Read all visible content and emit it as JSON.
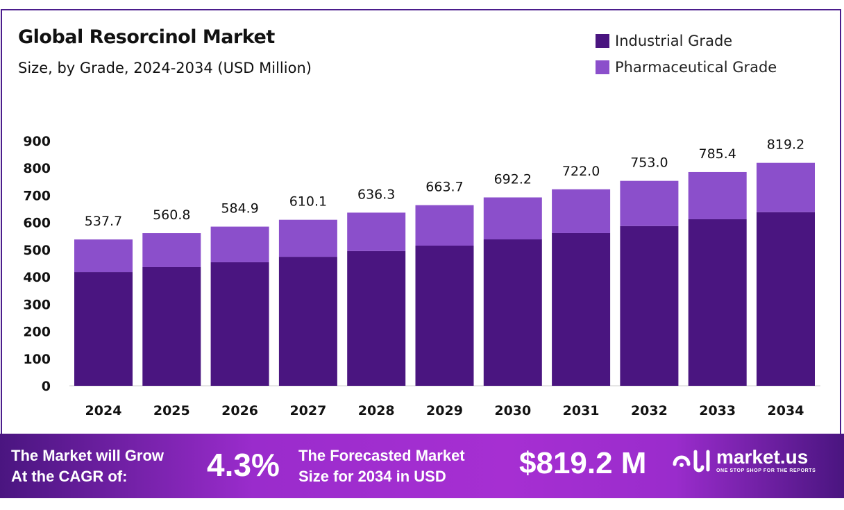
{
  "chart_data": {
    "type": "bar",
    "stacked": true,
    "title": "Global Resorcinol Market",
    "subtitle": "Size, by Grade, 2024-2034 (USD Million)",
    "categories": [
      "2024",
      "2025",
      "2026",
      "2027",
      "2028",
      "2029",
      "2030",
      "2031",
      "2032",
      "2033",
      "2034"
    ],
    "series": [
      {
        "name": "Industrial Grade",
        "color": "#4a1580",
        "values": [
          418,
          436,
          454,
          474,
          495,
          515,
          538,
          561,
          587,
          612,
          638
        ]
      },
      {
        "name": "Pharmaceutical Grade",
        "color": "#8b4fcb",
        "values": [
          119.7,
          124.8,
          130.9,
          136.1,
          141.3,
          148.7,
          154.2,
          161.0,
          166.0,
          173.4,
          181.2
        ]
      }
    ],
    "totals": [
      "537.7",
      "560.8",
      "584.9",
      "610.1",
      "636.3",
      "663.7",
      "692.2",
      "722.0",
      "753.0",
      "785.4",
      "819.2"
    ],
    "ylim": [
      0,
      900
    ],
    "yticks": [
      "0",
      "100",
      "200",
      "300",
      "400",
      "500",
      "600",
      "700",
      "800",
      "900"
    ],
    "grid": false,
    "legend_position": "top-right"
  },
  "banner": {
    "cagr_label_line1": "The Market will Grow",
    "cagr_label_line2": "At the CAGR of:",
    "cagr_value": "4.3%",
    "forecast_label_line1": "The Forecasted Market",
    "forecast_label_line2": "Size for 2034 in USD",
    "forecast_value": "$819.2 M",
    "logo_name": "market.us",
    "logo_tagline": "ONE STOP SHOP FOR THE REPORTS"
  }
}
